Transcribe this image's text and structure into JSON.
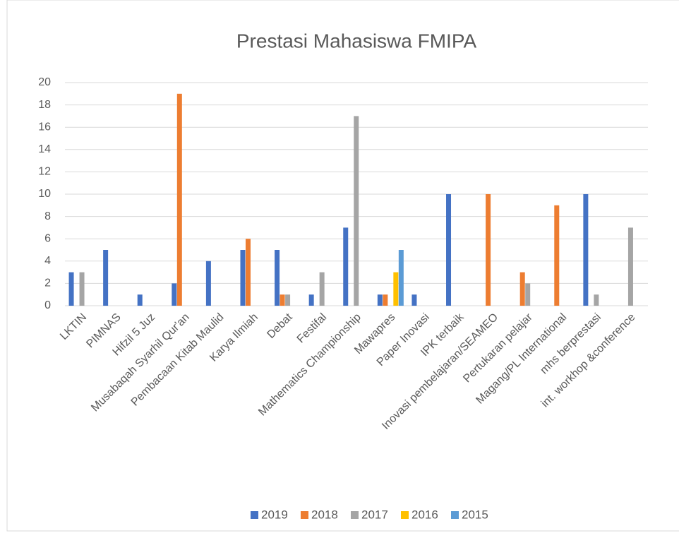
{
  "chart_data": {
    "type": "bar",
    "title": "Prestasi Mahasiswa FMIPA",
    "categories": [
      "LKTIN",
      "PIMNAS",
      "Hifzil 5 Juz",
      "Musabaqah Syarhil Qur'an",
      "Pembacaan Kitab Maulid",
      "Karya Ilmiah",
      "Debat",
      "Festifal",
      "Mathematics Championship",
      "Mawapres",
      "Paper Inovasi",
      "IPK terbaik",
      "Inovasi pembelajaran/SEAMEO",
      "Pertukaran pelajar",
      "Magang/PL International",
      "mhs berprestasi",
      "int. workhop &conference"
    ],
    "series": [
      {
        "name": "2019",
        "color": "#4472c4",
        "values": [
          3,
          5,
          1,
          2,
          4,
          5,
          5,
          1,
          7,
          1,
          1,
          10,
          null,
          null,
          null,
          10,
          null
        ]
      },
      {
        "name": "2018",
        "color": "#ed7d31",
        "values": [
          null,
          null,
          null,
          19,
          null,
          6,
          1,
          null,
          null,
          1,
          null,
          null,
          10,
          3,
          9,
          null,
          null
        ]
      },
      {
        "name": "2017",
        "color": "#a5a5a5",
        "values": [
          3,
          null,
          null,
          null,
          null,
          null,
          1,
          3,
          17,
          null,
          null,
          null,
          null,
          2,
          null,
          1,
          7
        ]
      },
      {
        "name": "2016",
        "color": "#ffc000",
        "values": [
          null,
          null,
          null,
          null,
          null,
          null,
          null,
          null,
          null,
          3,
          null,
          null,
          null,
          null,
          null,
          null,
          null
        ]
      },
      {
        "name": "2015",
        "color": "#5b9bd5",
        "values": [
          null,
          null,
          null,
          null,
          null,
          null,
          null,
          null,
          null,
          5,
          null,
          null,
          null,
          null,
          null,
          null,
          null
        ]
      }
    ],
    "ylim": [
      0,
      20
    ],
    "yticks": [
      0,
      2,
      4,
      6,
      8,
      10,
      12,
      14,
      16,
      18,
      20
    ],
    "grid": true,
    "legend": "bottom"
  }
}
